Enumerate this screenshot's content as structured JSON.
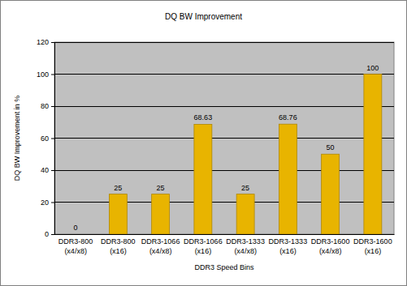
{
  "chart_data": {
    "type": "bar",
    "title": "DQ BW Improvement",
    "x_label": "DDR3 Speed Bins",
    "y_label": "DQ BW Improvement in %",
    "categories": [
      "DDR3-800 (x4/x8)",
      "DDR3-800 (x16)",
      "DDR3-1066 (x4/x8)",
      "DDR3-1066 (x16)",
      "DDR3-1333 (x4/x8)",
      "DDR3-1333 (x16)",
      "DDR3-1600 (x4/x8)",
      "DDR3-1600 (x16)"
    ],
    "values": [
      0,
      25,
      25,
      68.63,
      25,
      68.76,
      50,
      100
    ],
    "color": "#e8b400",
    "ylim": [
      0,
      120
    ],
    "yticks": [
      0,
      20,
      40,
      60,
      80,
      100,
      120
    ],
    "grid": true,
    "data_labels": true
  }
}
